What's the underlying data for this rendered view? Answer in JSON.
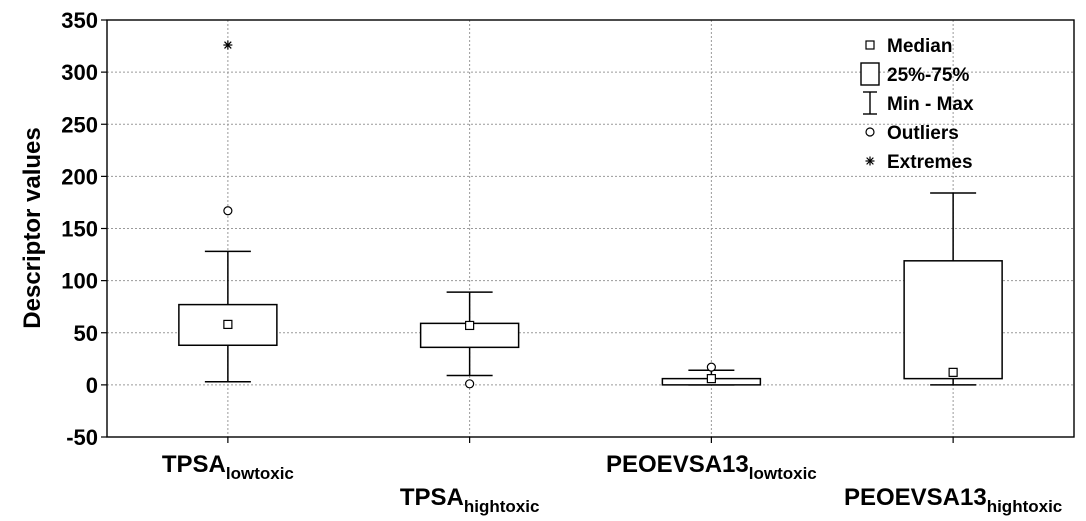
{
  "chart_data": {
    "type": "box",
    "ylabel": "Descriptor values",
    "ylim": [
      -50,
      350
    ],
    "yticks": [
      -50,
      0,
      50,
      100,
      150,
      200,
      250,
      300,
      350
    ],
    "grid": true,
    "legend_position": "top-right",
    "legend": [
      {
        "key": "median",
        "label": "Median"
      },
      {
        "key": "box",
        "label": "25%-75%"
      },
      {
        "key": "whisker",
        "label": "Min - Max"
      },
      {
        "key": "outlier",
        "label": "Outliers"
      },
      {
        "key": "extreme",
        "label": "Extremes"
      }
    ],
    "categories": [
      {
        "name": "TPSA",
        "sub": "lowtoxic",
        "median": 58,
        "q1": 38,
        "q3": 77,
        "min": 3,
        "max": 128,
        "outliers": [
          167
        ],
        "extremes": [
          326
        ]
      },
      {
        "name": "TPSA",
        "sub": "hightoxic",
        "median": 57,
        "q1": 36,
        "q3": 59,
        "min": 9,
        "max": 89,
        "outliers": [
          1
        ],
        "extremes": []
      },
      {
        "name": "PEOEVSA13",
        "sub": "lowtoxic",
        "median": 6,
        "q1": 0,
        "q3": 6,
        "min": 0,
        "max": 14,
        "outliers": [
          17
        ],
        "extremes": []
      },
      {
        "name": "PEOEVSA13",
        "sub": "hightoxic",
        "median": 12,
        "q1": 6,
        "q3": 119,
        "min": 0,
        "max": 184,
        "outliers": [],
        "extremes": []
      }
    ]
  }
}
